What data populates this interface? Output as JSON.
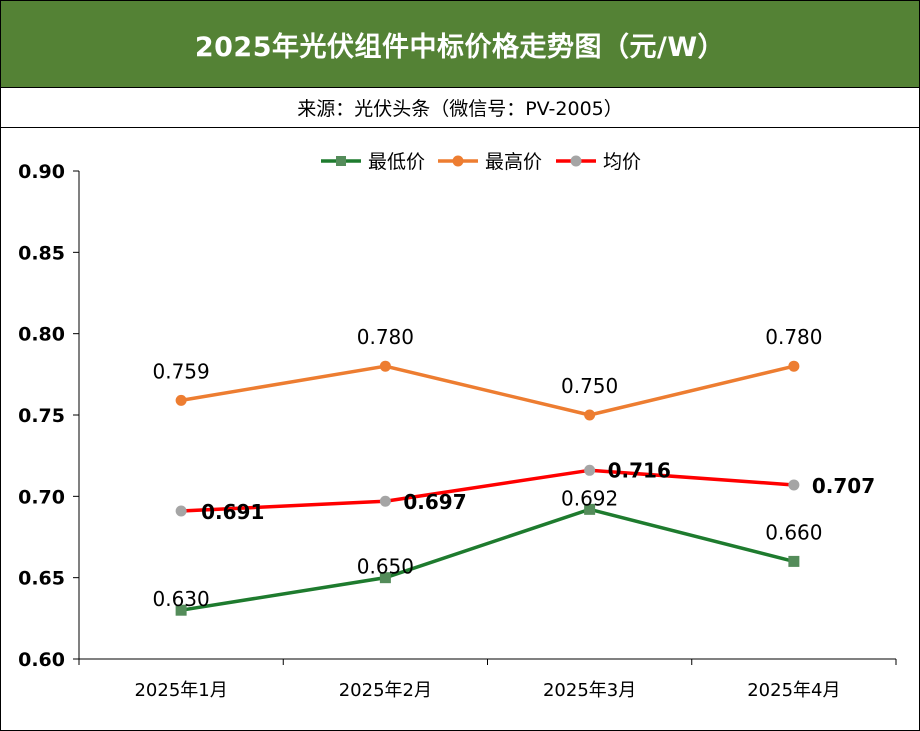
{
  "header": {
    "title": "2025年光伏组件中标价格走势图（元/W）",
    "source": "来源：光伏头条（微信号：PV-2005）"
  },
  "colors": {
    "title_bg": "#548235",
    "min_series": "#1E7B2E",
    "max_series": "#ED7D31",
    "avg_series": "#FF0000",
    "avg_marker": "#A5A5A5",
    "min_marker": "#548C5A"
  },
  "chart_data": {
    "type": "line",
    "categories": [
      "2025年1月",
      "2025年2月",
      "2025年3月",
      "2025年4月"
    ],
    "ylim": [
      0.6,
      0.9
    ],
    "yticks": [
      "0.60",
      "0.65",
      "0.70",
      "0.75",
      "0.80",
      "0.85",
      "0.90"
    ],
    "legend_position": "top",
    "grid": false,
    "series": [
      {
        "name": "最低价",
        "values": [
          0.63,
          0.65,
          0.692,
          0.66
        ],
        "labels": [
          "0.630",
          "0.650",
          "0.692",
          "0.660"
        ],
        "marker": "square",
        "color": "#1E7B2E"
      },
      {
        "name": "最高价",
        "values": [
          0.759,
          0.78,
          0.75,
          0.78
        ],
        "labels": [
          "0.759",
          "0.780",
          "0.750",
          "0.780"
        ],
        "marker": "circle",
        "color": "#ED7D31"
      },
      {
        "name": "均价",
        "values": [
          0.691,
          0.697,
          0.716,
          0.707
        ],
        "labels": [
          "0.691",
          "0.697",
          "0.716",
          "0.707"
        ],
        "marker": "circle",
        "color": "#FF0000"
      }
    ]
  }
}
